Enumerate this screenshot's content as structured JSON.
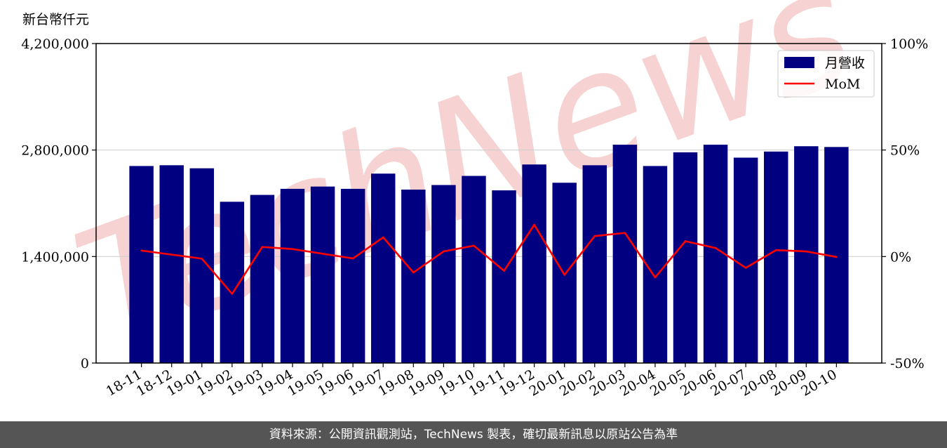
{
  "footer": {
    "source_note": "資料來源：公開資訊觀測站，TechNews 製表，確切最新訊息以原站公告為準"
  },
  "watermark": {
    "text": "TechNews",
    "color": "#f6d2d2"
  },
  "colors": {
    "bar": "#000080",
    "line": "#ff0000",
    "grid": "#d0d0d0"
  },
  "chart_data": {
    "type": "bar",
    "categories": [
      "18-11",
      "18-12",
      "19-01",
      "19-02",
      "19-03",
      "19-04",
      "19-05",
      "19-06",
      "19-07",
      "19-08",
      "19-09",
      "19-10",
      "19-11",
      "19-12",
      "20-01",
      "20-02",
      "20-03",
      "20-04",
      "20-05",
      "20-06",
      "20-07",
      "20-08",
      "20-09",
      "20-10"
    ],
    "series": [
      {
        "name": "月營收",
        "type": "bar",
        "axis": "left",
        "values": [
          2590000,
          2600000,
          2560000,
          2120000,
          2210000,
          2290000,
          2320000,
          2290000,
          2490000,
          2280000,
          2340000,
          2460000,
          2270000,
          2610000,
          2370000,
          2600000,
          2870000,
          2590000,
          2770000,
          2870000,
          2700000,
          2780000,
          2850000,
          2840000
        ]
      },
      {
        "name": "MoM",
        "type": "line",
        "axis": "right",
        "values": [
          2.8,
          0.9,
          -1.0,
          -17.5,
          4.5,
          3.5,
          1.3,
          -0.9,
          9.0,
          -7.5,
          2.4,
          5.1,
          -6.7,
          14.9,
          -8.6,
          9.6,
          11.1,
          -9.8,
          7.2,
          4.0,
          -5.3,
          3.0,
          2.4,
          -0.2
        ]
      }
    ],
    "ylabel": "新台幣仟元",
    "ylim": [
      0,
      4200000
    ],
    "yticks": [
      "0",
      "1,400,000",
      "2,800,000",
      "4,200,000"
    ],
    "ytick_values": [
      0,
      1400000,
      2800000,
      4200000
    ],
    "y2lim": [
      -50,
      100
    ],
    "y2ticks": [
      "-50%",
      "0%",
      "50%",
      "100%"
    ],
    "y2tick_values": [
      -50,
      0,
      50,
      100
    ],
    "grid": true,
    "legend": "top-right"
  }
}
